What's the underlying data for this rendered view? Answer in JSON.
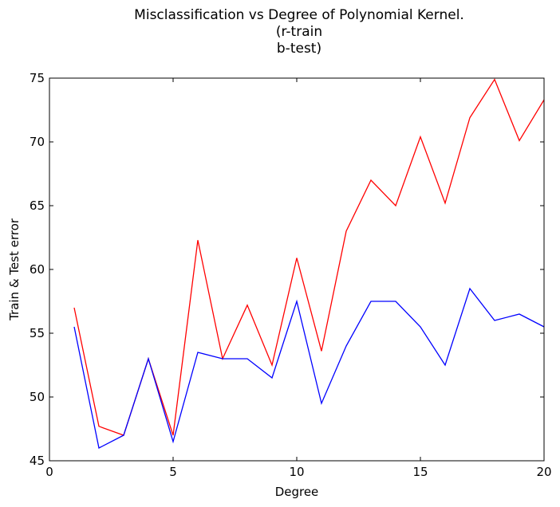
{
  "chart_data": {
    "type": "line",
    "title_lines": [
      "Misclassification vs Degree of Polynomial Kernel.",
      "(r-train",
      "b-test)"
    ],
    "xlabel": "Degree",
    "ylabel": "Train & Test error",
    "xlim": [
      0,
      20
    ],
    "ylim": [
      45,
      75
    ],
    "x_ticks": [
      0,
      5,
      10,
      15,
      20
    ],
    "y_ticks": [
      45,
      50,
      55,
      60,
      65,
      70,
      75
    ],
    "grid": false,
    "x": [
      1,
      2,
      3,
      4,
      5,
      6,
      7,
      8,
      9,
      10,
      11,
      12,
      13,
      14,
      15,
      16,
      17,
      18,
      19,
      20
    ],
    "series": [
      {
        "color": "#ff0000",
        "values": [
          57.0,
          47.7,
          47.0,
          53.0,
          47.0,
          62.3,
          53.0,
          57.2,
          52.5,
          60.9,
          53.6,
          63.0,
          67.0,
          65.0,
          70.4,
          65.2,
          71.9,
          74.9,
          70.1,
          73.3
        ]
      },
      {
        "color": "#0000ff",
        "values": [
          55.5,
          46.0,
          47.0,
          53.0,
          46.5,
          53.5,
          53.0,
          53.0,
          51.5,
          57.5,
          49.5,
          54.0,
          57.5,
          57.5,
          55.5,
          52.5,
          58.5,
          56.0,
          56.5,
          55.5
        ]
      }
    ]
  }
}
